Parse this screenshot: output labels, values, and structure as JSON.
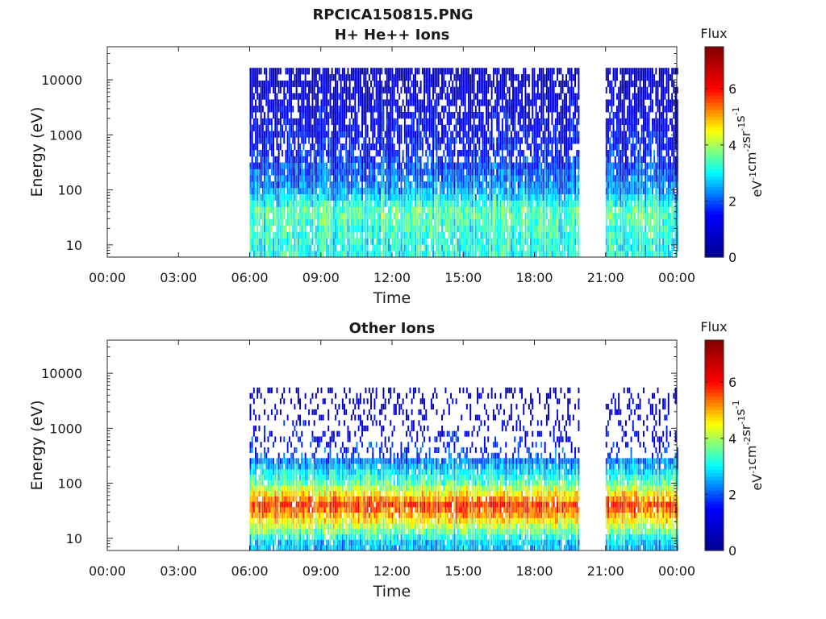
{
  "figure_title": "RPCICA150815.PNG",
  "colors": {
    "colormap": [
      "#00008f",
      "#0000ff",
      "#00ffff",
      "#ffff00",
      "#ff0000",
      "#800000"
    ],
    "axis": "#262626"
  },
  "chart_data": [
    {
      "type": "heatmap",
      "title": "H+ He++ Ions",
      "xlabel": "Time",
      "ylabel": "Energy (eV)",
      "xticks": [
        "00:00",
        "03:00",
        "06:00",
        "09:00",
        "12:00",
        "15:00",
        "18:00",
        "21:00",
        "00:00"
      ],
      "xlim_hours": [
        0,
        24
      ],
      "yticks": [
        "10",
        "100",
        "1000",
        "10000"
      ],
      "ylim": [
        6,
        40000
      ],
      "yscale": "log",
      "data_intervals_hours": [
        [
          6.0,
          19.9
        ],
        [
          21.0,
          24.0
        ]
      ],
      "colorbar": {
        "label": "Flux",
        "units": "eV-1cm-2sr-1s-1",
        "ticks": [
          "0",
          "2",
          "4",
          "6"
        ],
        "range": [
          0,
          7.5
        ]
      },
      "energy_profile": [
        {
          "energy": 8,
          "flux": 3.1
        },
        {
          "energy": 20,
          "flux": 3.3
        },
        {
          "energy": 40,
          "flux": 3.6
        },
        {
          "energy": 100,
          "flux": 2.4
        },
        {
          "energy": 300,
          "flux": 1.8
        },
        {
          "energy": 1000,
          "flux": 1.4
        },
        {
          "energy": 5000,
          "flux": 1.0
        },
        {
          "energy": 15000,
          "flux": 0.6
        }
      ]
    },
    {
      "type": "heatmap",
      "title": "Other Ions",
      "xlabel": "Time",
      "ylabel": "Energy (eV)",
      "xticks": [
        "00:00",
        "03:00",
        "06:00",
        "09:00",
        "12:00",
        "15:00",
        "18:00",
        "21:00",
        "00:00"
      ],
      "xlim_hours": [
        0,
        24
      ],
      "yticks": [
        "10",
        "100",
        "1000",
        "10000"
      ],
      "ylim": [
        6,
        40000
      ],
      "yscale": "log",
      "data_intervals_hours": [
        [
          6.0,
          19.9
        ],
        [
          21.0,
          24.0
        ]
      ],
      "colorbar": {
        "label": "Flux",
        "units": "eV-1cm-2sr-1s-1",
        "ticks": [
          "0",
          "2",
          "4",
          "6"
        ],
        "range": [
          0,
          7.5
        ]
      },
      "energy_profile": [
        {
          "energy": 8,
          "flux": 2.6
        },
        {
          "energy": 20,
          "flux": 4.5
        },
        {
          "energy": 40,
          "flux": 5.8
        },
        {
          "energy": 100,
          "flux": 3.6
        },
        {
          "energy": 300,
          "flux": 2.0
        },
        {
          "energy": 1000,
          "flux": 1.2
        },
        {
          "energy": 5000,
          "flux": 0.6
        }
      ]
    }
  ]
}
